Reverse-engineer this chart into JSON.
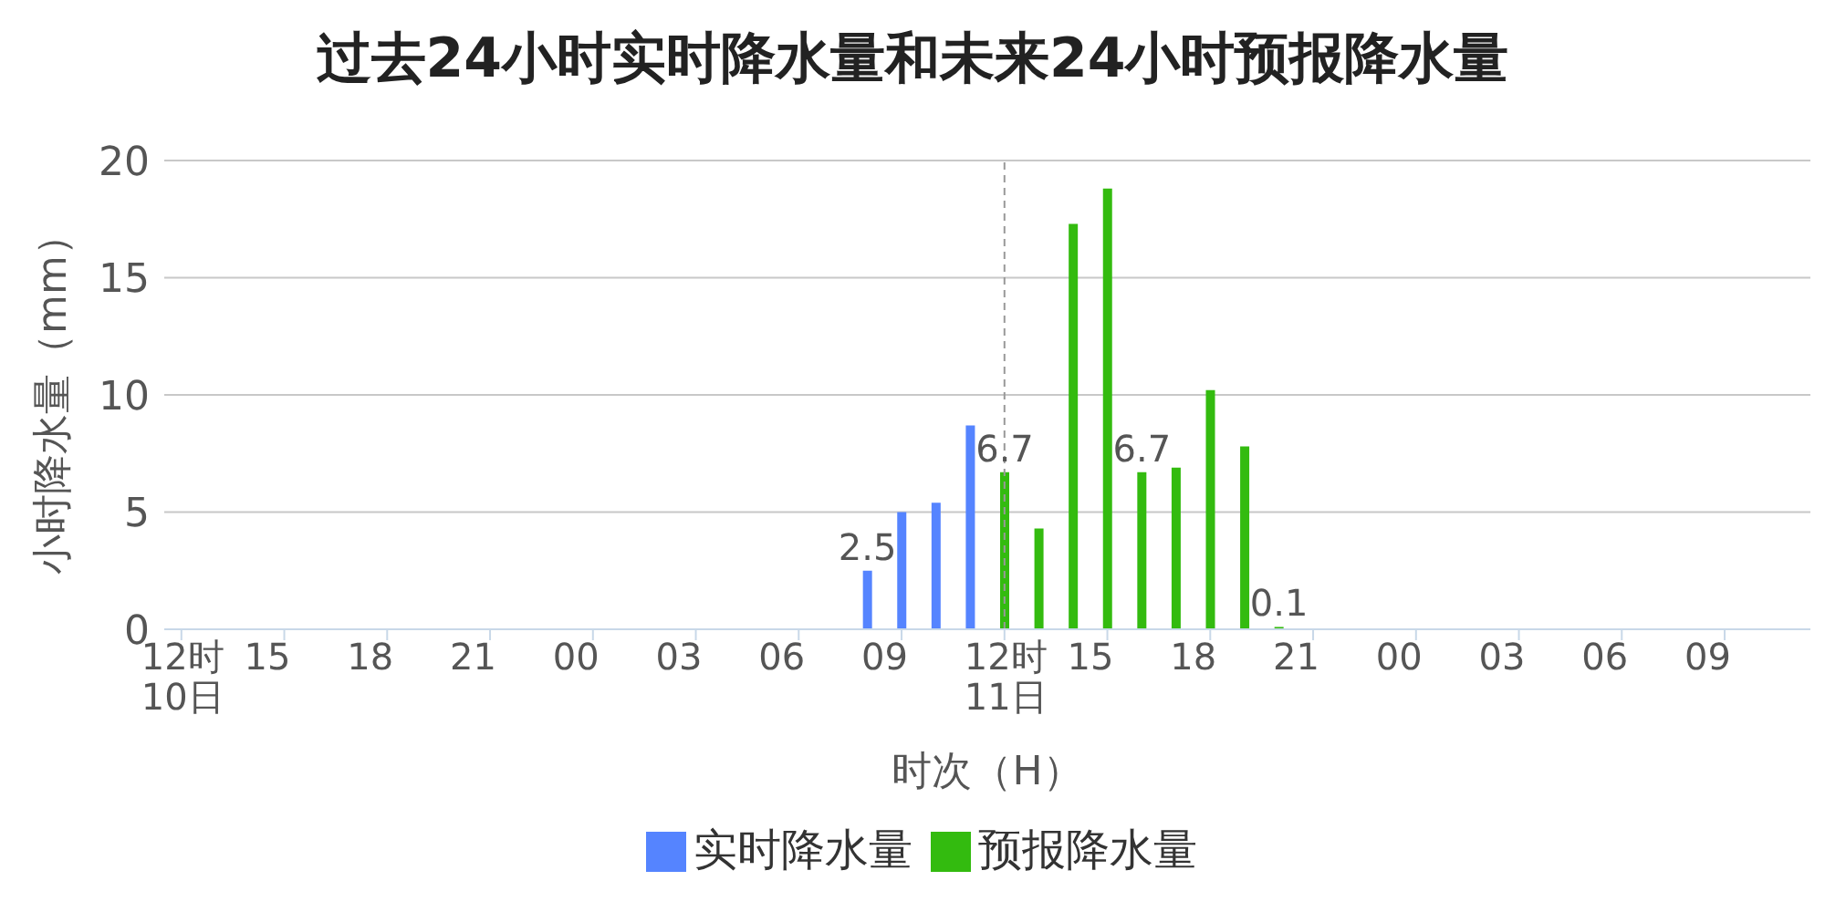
{
  "chart_data": {
    "type": "bar",
    "title": "过去24小时实时降水量和未来24小时预报降水量",
    "xlabel": "时次（H）",
    "ylabel": "小时降水量（mm）",
    "categories": [
      "12时\n10日",
      null,
      null,
      "15",
      null,
      null,
      "18",
      null,
      null,
      "21",
      null,
      null,
      "00",
      null,
      null,
      "03",
      null,
      null,
      "06",
      null,
      null,
      "09",
      null,
      null,
      "12时\n11日",
      null,
      null,
      "15",
      null,
      null,
      "18",
      null,
      null,
      "21",
      null,
      null,
      "00",
      null,
      null,
      "03",
      null,
      null,
      "06",
      null,
      null,
      "09",
      null,
      null
    ],
    "series": [
      {
        "name": "实时降水量",
        "color": "#5584ff",
        "values": [
          null,
          null,
          null,
          null,
          null,
          null,
          null,
          null,
          null,
          null,
          null,
          null,
          null,
          null,
          null,
          null,
          null,
          null,
          null,
          null,
          2.5,
          5.0,
          5.4,
          8.7,
          null,
          null,
          null,
          null,
          null,
          null,
          null,
          null,
          null,
          null,
          null,
          null,
          null,
          null,
          null,
          null,
          null,
          null,
          null,
          null,
          null,
          null,
          null,
          null
        ],
        "value_labels": [
          null,
          null,
          null,
          null,
          null,
          null,
          null,
          null,
          null,
          null,
          null,
          null,
          null,
          null,
          null,
          null,
          null,
          null,
          null,
          null,
          "2.5",
          null,
          null,
          null,
          null,
          null,
          null,
          null,
          null,
          null,
          null,
          null,
          null,
          null,
          null,
          null,
          null,
          null,
          null,
          null,
          null,
          null,
          null,
          null,
          null,
          null,
          null,
          null
        ]
      },
      {
        "name": "预报降水量",
        "color": "#33bb0f",
        "values": [
          null,
          null,
          null,
          null,
          null,
          null,
          null,
          null,
          null,
          null,
          null,
          null,
          null,
          null,
          null,
          null,
          null,
          null,
          null,
          null,
          null,
          null,
          null,
          null,
          6.7,
          4.3,
          17.3,
          18.8,
          6.7,
          6.9,
          10.2,
          7.8,
          0.1,
          null,
          null,
          null,
          null,
          null,
          null,
          null,
          null,
          null,
          null,
          null,
          null,
          null,
          null,
          null
        ],
        "value_labels": [
          null,
          null,
          null,
          null,
          null,
          null,
          null,
          null,
          null,
          null,
          null,
          null,
          null,
          null,
          null,
          null,
          null,
          null,
          null,
          null,
          null,
          null,
          null,
          null,
          "6.7",
          null,
          null,
          null,
          "6.7",
          null,
          null,
          null,
          "0.1",
          null,
          null,
          null,
          null,
          null,
          null,
          null,
          null,
          null,
          null,
          null,
          null,
          null,
          null,
          null
        ]
      }
    ],
    "ylim": [
      0,
      20
    ],
    "yticks": [
      0,
      5,
      10,
      15,
      20
    ],
    "grid": "y",
    "legend": "bottom",
    "ref_lines": [
      {
        "axis": "x",
        "value": "12时\n11日",
        "label": null,
        "color": "#999999",
        "line_style": "dashed"
      }
    ]
  }
}
